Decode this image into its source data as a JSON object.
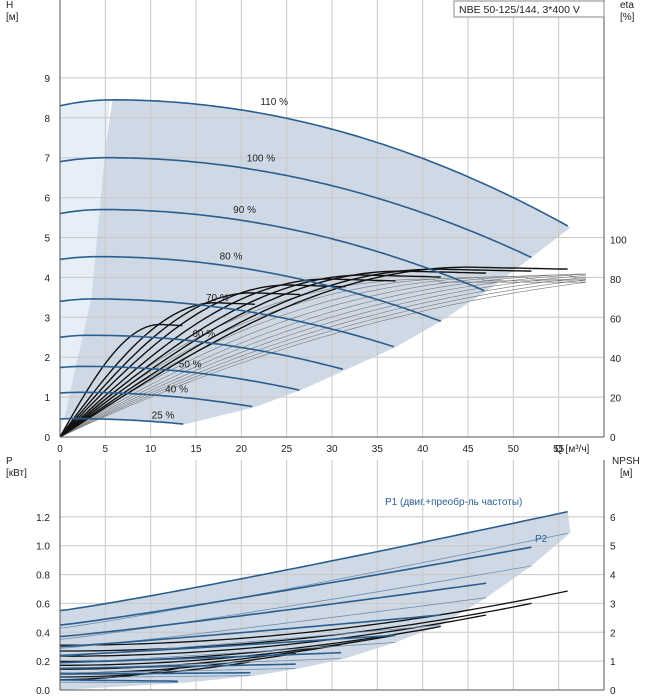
{
  "chart_data": [
    {
      "type": "line",
      "title": "NBE 50-125/144, 3*400 V",
      "ylabel_top": "H",
      "ylabel_unit": "[м]",
      "y2label_top": "eta",
      "y2label_unit": "[%]",
      "xlabel": "Q [м³/ч]",
      "xlim": [
        0,
        60
      ],
      "ylim": [
        0,
        10
      ],
      "y2lim": [
        0,
        120
      ],
      "x_ticks": [
        0,
        5,
        10,
        15,
        20,
        25,
        30,
        35,
        40,
        45,
        50,
        55
      ],
      "y_ticks": [
        0,
        1,
        2,
        3,
        4,
        5,
        6,
        7,
        8,
        9
      ],
      "y2_ticks": [
        0,
        20,
        40,
        60,
        80,
        100
      ],
      "grid": true,
      "head_curves": [
        {
          "label": "110 %",
          "h0": 8.3,
          "qmax": 56.3,
          "hmax_q": 5.8,
          "hmax": 8.45,
          "hend": 5.25
        },
        {
          "label": "100 %",
          "h0": 6.9,
          "qmax": 52.0,
          "hmax_q": 5.2,
          "hmax": 7.0,
          "hend": 4.5
        },
        {
          "label": "90 %",
          "h0": 5.6,
          "qmax": 47.0,
          "hmax_q": 4.7,
          "hmax": 5.7,
          "hend": 3.65
        },
        {
          "label": "80 %",
          "h0": 4.45,
          "qmax": 42.0,
          "hmax_q": 4.2,
          "hmax": 4.52,
          "hend": 2.9
        },
        {
          "label": "70 %",
          "h0": 3.4,
          "qmax": 37.0,
          "hmax_q": 3.7,
          "hmax": 3.46,
          "hend": 2.25
        },
        {
          "label": "60 %",
          "h0": 2.5,
          "qmax": 31.5,
          "hmax_q": 3.2,
          "hmax": 2.55,
          "hend": 1.68
        },
        {
          "label": "50 %",
          "h0": 1.74,
          "qmax": 26.5,
          "hmax_q": 2.6,
          "hmax": 1.77,
          "hend": 1.17
        },
        {
          "label": "40 %",
          "h0": 1.1,
          "qmax": 21.5,
          "hmax_q": 2.1,
          "hmax": 1.12,
          "hend": 0.75
        },
        {
          "label": "25 %",
          "h0": 0.45,
          "qmax": 13.8,
          "hmax_q": 1.4,
          "hmax": 0.46,
          "hend": 0.32
        }
      ],
      "efficiency_peaks": [
        86,
        85,
        84,
        82,
        80,
        77,
        73,
        68,
        57
      ],
      "nearfield_q": 5.8
    },
    {
      "type": "line",
      "ylabel_top": "P",
      "ylabel_unit": "[кВт]",
      "y2label_top": "NPSH",
      "y2label_unit": "[м]",
      "xlim": [
        0,
        60
      ],
      "ylim": [
        0,
        1.4
      ],
      "y2lim": [
        0,
        7
      ],
      "y_ticks": [
        "0.0",
        "0.2",
        "0.4",
        "0.6",
        "0.8",
        "1.0",
        "1.2"
      ],
      "y2_ticks": [
        0,
        1,
        2,
        3,
        4,
        5,
        6
      ],
      "grid": true,
      "series_labels": {
        "p1": "P1 (двиг.+преобр-ль частоты)",
        "p2": "P2"
      },
      "power_curves": [
        {
          "qmax": 56.3,
          "p1_0": 0.55,
          "p1_end": 1.24,
          "p2_end": 1.09
        },
        {
          "qmax": 52.0,
          "p1_0": 0.45,
          "p1_end": 0.99,
          "p2_end": 0.86
        },
        {
          "qmax": 47.0,
          "p1_0": 0.37,
          "p1_end": 0.74,
          "p2_end": 0.64
        },
        {
          "qmax": 42.0,
          "p1_0": 0.3,
          "p1_end": 0.52,
          "p2_end": 0.45
        },
        {
          "qmax": 37.0,
          "p1_0": 0.24,
          "p1_end": 0.38,
          "p2_end": 0.33
        },
        {
          "qmax": 31.5,
          "p1_0": 0.19,
          "p1_end": 0.26,
          "p2_end": 0.22
        },
        {
          "qmax": 26.5,
          "p1_0": 0.15,
          "p1_end": 0.18,
          "p2_end": 0.15
        },
        {
          "qmax": 21.5,
          "p1_0": 0.11,
          "p1_end": 0.12,
          "p2_end": 0.1
        },
        {
          "qmax": 13.8,
          "p1_0": 0.07,
          "p1_end": 0.06,
          "p2_end": 0.05
        }
      ],
      "npsh_end": [
        3.45,
        3.0,
        2.6,
        2.2,
        1.9,
        1.6,
        1.3,
        1.0,
        0.8
      ]
    }
  ],
  "colors": {
    "grid": "#c8c8c8",
    "area": "#cfd9e5",
    "area_light": "#e6eef7",
    "curve": "#2a5e8f",
    "efficiency": "#111111",
    "thin": "#777777",
    "label": "#2a5e8f"
  }
}
